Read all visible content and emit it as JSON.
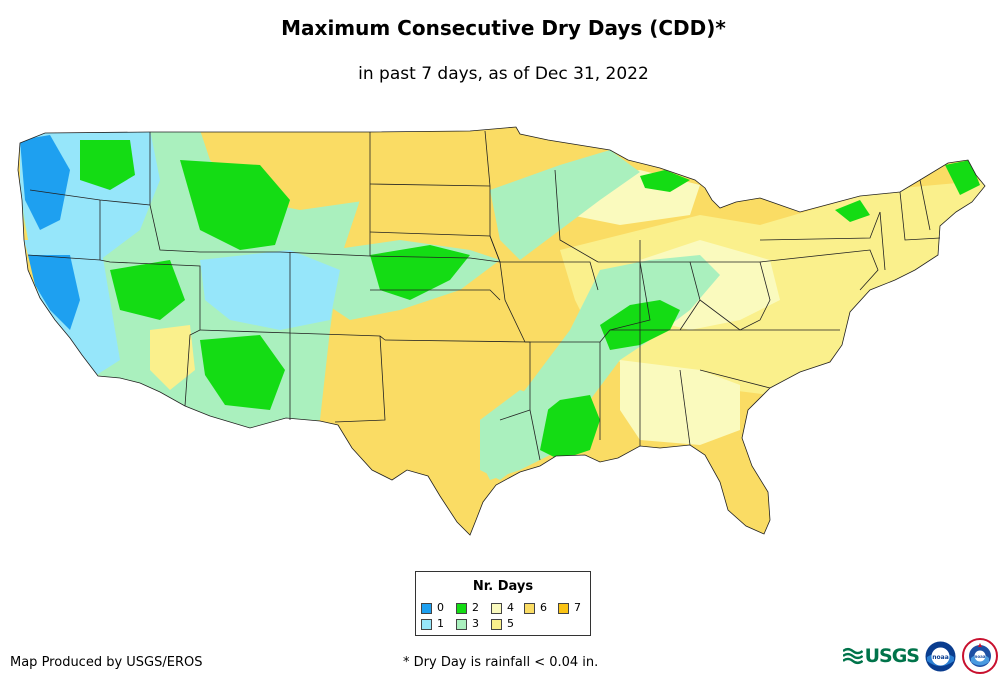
{
  "title": "Maximum Consecutive Dry Days (CDD)*",
  "subtitle": "in past 7 days, as of Dec 31, 2022",
  "legend": {
    "title": "Nr. Days",
    "items": [
      {
        "label": "0",
        "color": "#1ea0f0"
      },
      {
        "label": "1",
        "color": "#96e6fa"
      },
      {
        "label": "2",
        "color": "#14dc14"
      },
      {
        "label": "3",
        "color": "#aaf0be"
      },
      {
        "label": "4",
        "color": "#fafabe"
      },
      {
        "label": "5",
        "color": "#faf08c"
      },
      {
        "label": "6",
        "color": "#fadc64"
      },
      {
        "label": "7",
        "color": "#fac314"
      }
    ]
  },
  "map": {
    "region": "Contiguous United States",
    "state_borders": true
  },
  "credit": "Map Produced by USGS/EROS",
  "footnote": "* Dry Day is rainfall < 0.04 in.",
  "logos": {
    "usgs": "USGS",
    "noaa": "noaa",
    "nws": "noaa"
  }
}
